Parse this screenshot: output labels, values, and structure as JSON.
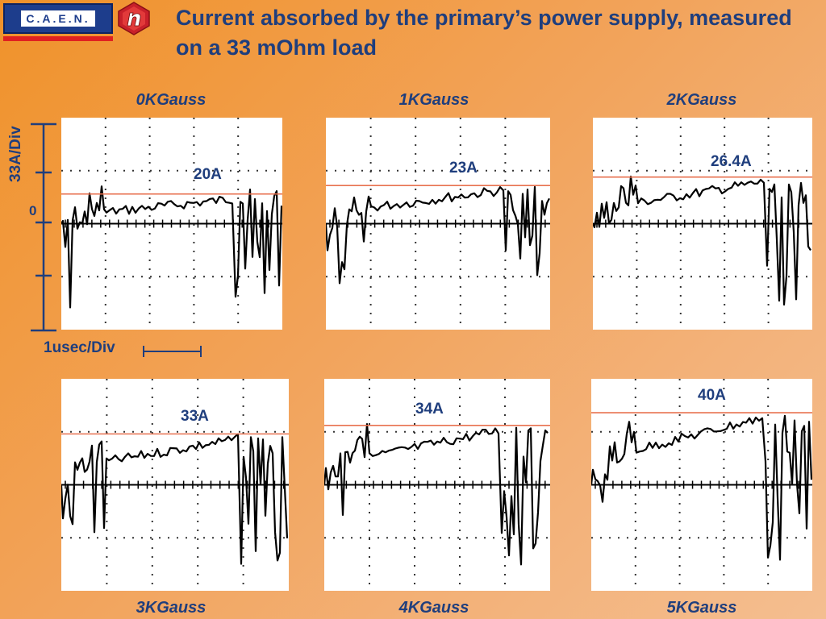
{
  "logo": {
    "text": "C.A.E.N."
  },
  "title": "Current absorbed by the primary’s power supply, measured on a 33 mOhm load",
  "scales": {
    "vertical": "33A/Div",
    "zero": "0",
    "horizontal": "1usec/Div"
  },
  "panels": [
    {
      "label": "0KGauss",
      "readout": "20A"
    },
    {
      "label": "1KGauss",
      "readout": "23A"
    },
    {
      "label": "2KGauss",
      "readout": "26.4A"
    },
    {
      "label": "3KGauss",
      "readout": "33A"
    },
    {
      "label": "4KGauss",
      "readout": "34A"
    },
    {
      "label": "5KGauss",
      "readout": "40A"
    }
  ],
  "colors": {
    "title": "#1f3e7d",
    "marker_line": "#e8714f",
    "trace": "#000000"
  }
}
